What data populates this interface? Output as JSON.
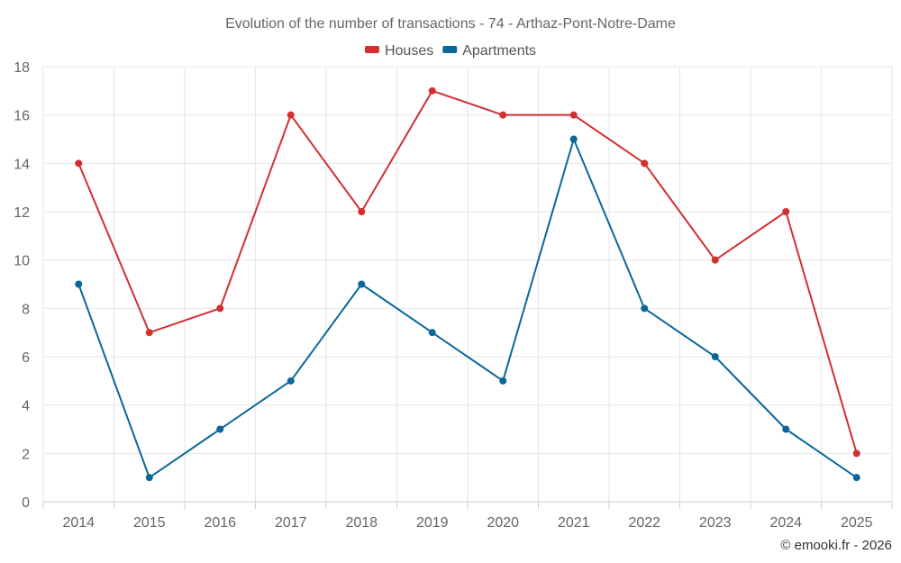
{
  "chart_data": {
    "type": "line",
    "title": "Evolution of the number of transactions - 74 - Arthaz-Pont-Notre-Dame",
    "categories": [
      "2014",
      "2015",
      "2016",
      "2017",
      "2018",
      "2019",
      "2020",
      "2021",
      "2022",
      "2023",
      "2024",
      "2025"
    ],
    "series": [
      {
        "name": "Houses",
        "color": "#d32f2f",
        "values": [
          14,
          7,
          8,
          16,
          12,
          17,
          16,
          16,
          14,
          10,
          12,
          2
        ]
      },
      {
        "name": "Apartments",
        "color": "#0b679b",
        "values": [
          9,
          1,
          3,
          5,
          9,
          7,
          5,
          15,
          8,
          6,
          3,
          1
        ]
      }
    ],
    "ylim": [
      0,
      18
    ],
    "yticks": [
      0,
      2,
      4,
      6,
      8,
      10,
      12,
      14,
      16,
      18
    ],
    "xlabel": "",
    "ylabel": "",
    "grid": true,
    "legend_position": "top-center"
  },
  "credit": "© emooki.fr - 2026"
}
